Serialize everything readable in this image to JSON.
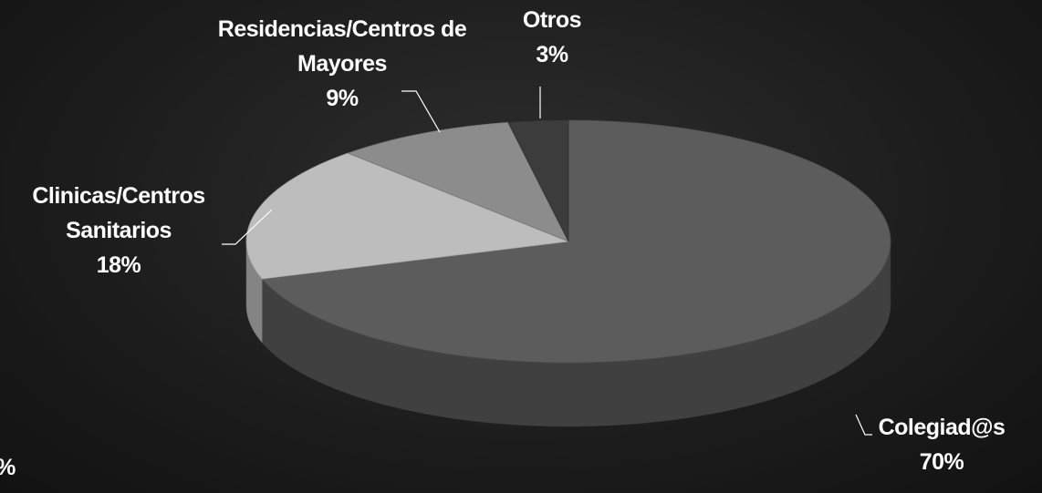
{
  "chart_data": {
    "type": "pie3d",
    "categories": [
      "Colegiad@s",
      "Clinicas/Centros Sanitarios",
      "Residencias/Centros de Mayores",
      "Otros"
    ],
    "values": [
      70,
      18,
      9,
      3
    ],
    "value_labels": [
      "70%",
      "18%",
      "9%",
      "3%"
    ],
    "colors": [
      "#5c5c5c",
      "#bdbdbd",
      "#8c8c8c",
      "#3c3c3c"
    ],
    "annotations": [
      "%"
    ]
  }
}
